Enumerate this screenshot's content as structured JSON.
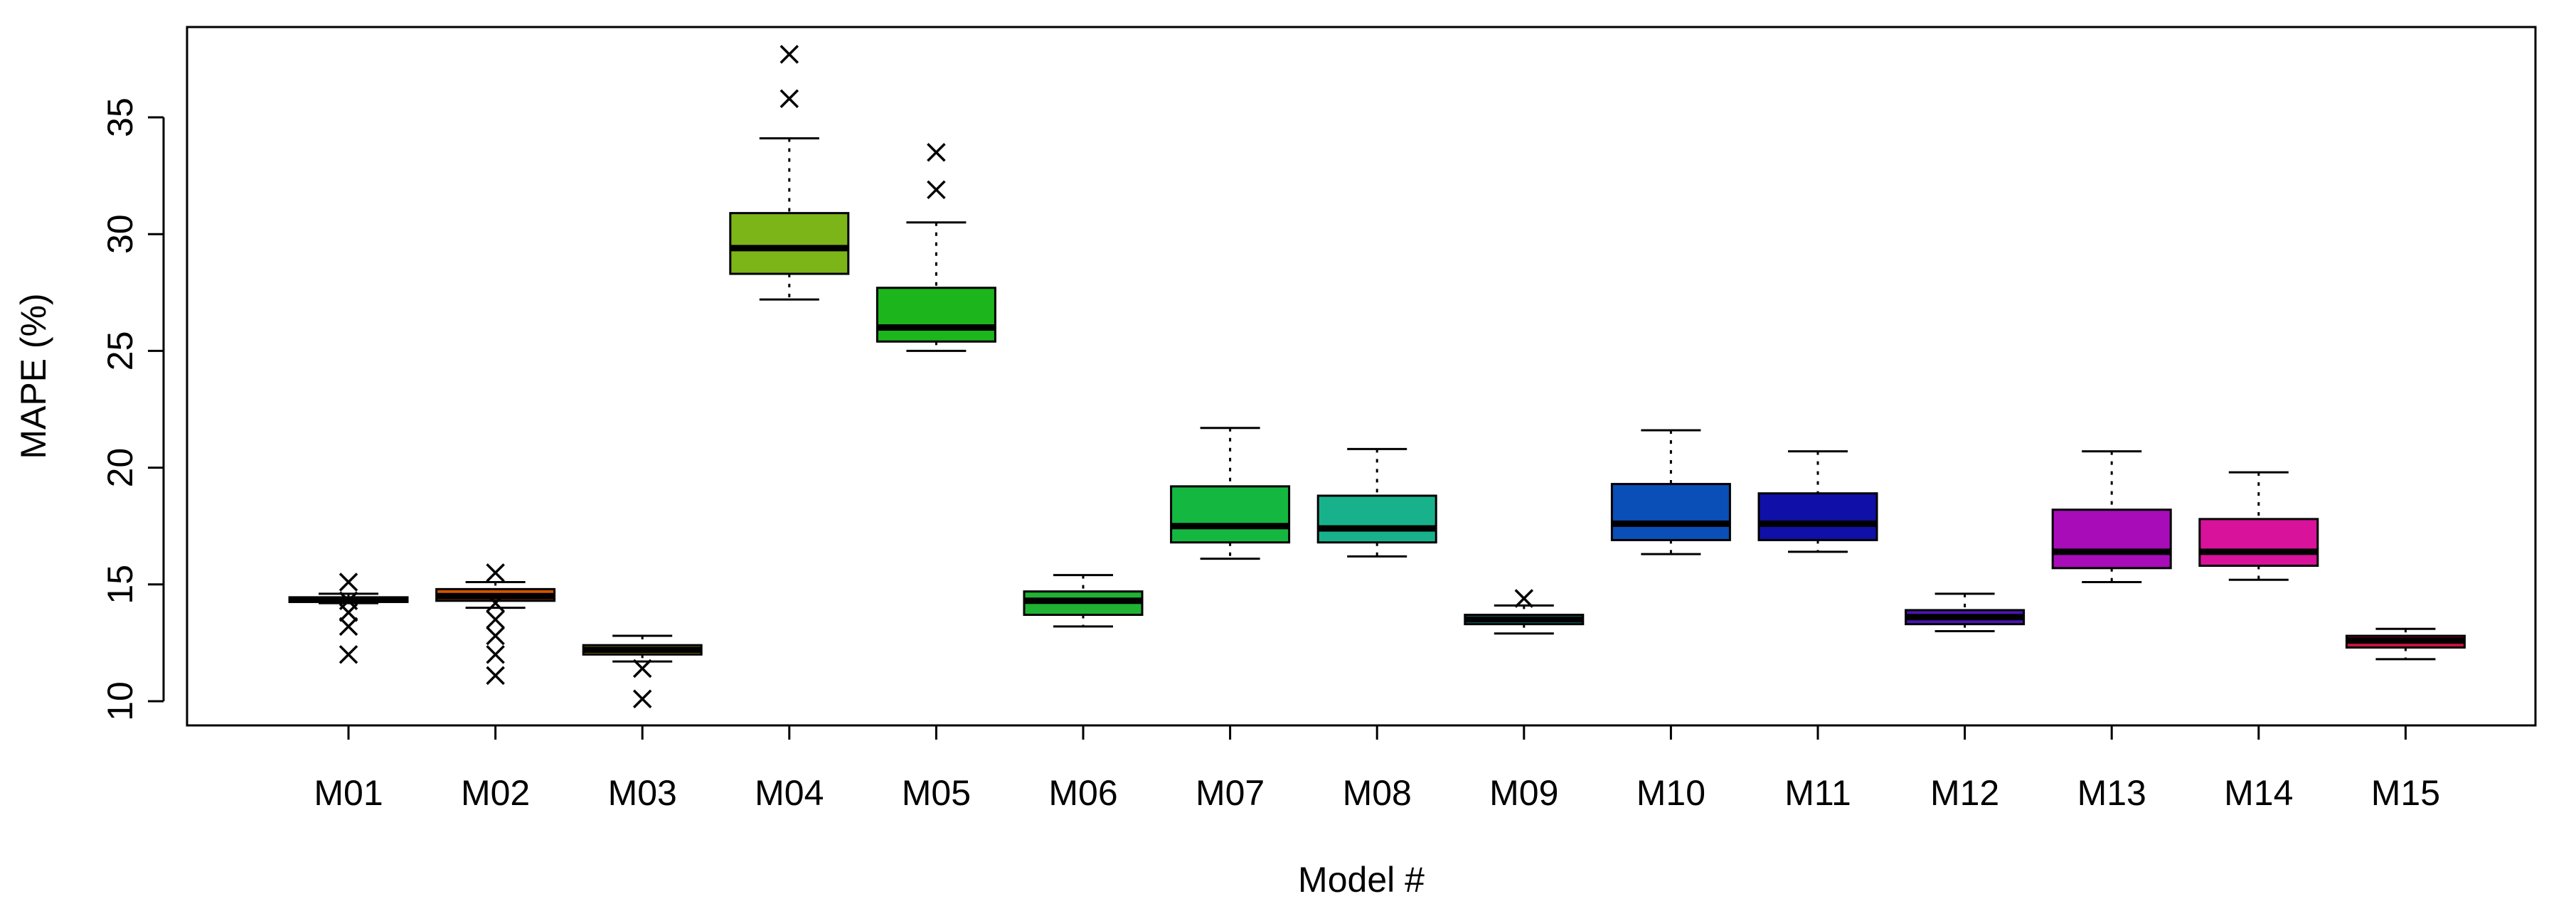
{
  "chart_data": {
    "type": "boxplot",
    "title": "",
    "xlabel": "Model #",
    "ylabel": "MAPE (%)",
    "ylim": [
      9,
      38
    ],
    "yticks": [
      10,
      15,
      20,
      25,
      30,
      35
    ],
    "grid": false,
    "legend": "none",
    "categories": [
      "M01",
      "M02",
      "M03",
      "M04",
      "M05",
      "M06",
      "M07",
      "M08",
      "M09",
      "M10",
      "M11",
      "M12",
      "M13",
      "M14",
      "M15"
    ],
    "boxes": [
      {
        "name": "M01",
        "color": "#C0392B",
        "whisker_low": 14.2,
        "q1": 14.25,
        "median": 14.35,
        "q3": 14.45,
        "whisker_high": 14.6,
        "outliers": [
          15.1,
          14.3,
          13.8,
          13.2,
          12.0
        ]
      },
      {
        "name": "M02",
        "color": "#D35400",
        "whisker_low": 14.0,
        "q1": 14.3,
        "median": 14.5,
        "q3": 14.8,
        "whisker_high": 15.1,
        "outliers": [
          15.5,
          14.2,
          13.5,
          12.8,
          12.0,
          11.1
        ]
      },
      {
        "name": "M03",
        "color": "#B7A21A",
        "whisker_low": 11.7,
        "q1": 12.0,
        "median": 12.2,
        "q3": 12.4,
        "whisker_high": 12.8,
        "outliers": [
          11.4,
          10.1
        ]
      },
      {
        "name": "M04",
        "color": "#7CB518",
        "whisker_low": 27.2,
        "q1": 28.3,
        "median": 29.4,
        "q3": 30.9,
        "whisker_high": 34.1,
        "outliers": [
          35.8,
          37.7
        ]
      },
      {
        "name": "M05",
        "color": "#1CB51C",
        "whisker_low": 25.0,
        "q1": 25.4,
        "median": 26.0,
        "q3": 27.7,
        "whisker_high": 30.5,
        "outliers": [
          31.9,
          33.5
        ]
      },
      {
        "name": "M06",
        "color": "#20B233",
        "whisker_low": 13.2,
        "q1": 13.7,
        "median": 14.3,
        "q3": 14.7,
        "whisker_high": 15.4,
        "outliers": []
      },
      {
        "name": "M07",
        "color": "#14B840",
        "whisker_low": 16.1,
        "q1": 16.8,
        "median": 17.5,
        "q3": 19.2,
        "whisker_high": 21.7,
        "outliers": []
      },
      {
        "name": "M08",
        "color": "#17B28C",
        "whisker_low": 16.2,
        "q1": 16.8,
        "median": 17.4,
        "q3": 18.8,
        "whisker_high": 20.8,
        "outliers": []
      },
      {
        "name": "M09",
        "color": "#1FA3B8",
        "whisker_low": 12.9,
        "q1": 13.3,
        "median": 13.5,
        "q3": 13.7,
        "whisker_high": 14.1,
        "outliers": [
          14.4
        ]
      },
      {
        "name": "M10",
        "color": "#0A4FB8",
        "whisker_low": 16.3,
        "q1": 16.9,
        "median": 17.6,
        "q3": 19.3,
        "whisker_high": 21.6,
        "outliers": []
      },
      {
        "name": "M11",
        "color": "#1010A8",
        "whisker_low": 16.4,
        "q1": 16.9,
        "median": 17.6,
        "q3": 18.9,
        "whisker_high": 20.7,
        "outliers": []
      },
      {
        "name": "M12",
        "color": "#4A14B5",
        "whisker_low": 13.0,
        "q1": 13.3,
        "median": 13.6,
        "q3": 13.9,
        "whisker_high": 14.6,
        "outliers": []
      },
      {
        "name": "M13",
        "color": "#A80CB8",
        "whisker_low": 15.1,
        "q1": 15.7,
        "median": 16.4,
        "q3": 18.2,
        "whisker_high": 20.7,
        "outliers": []
      },
      {
        "name": "M14",
        "color": "#D8129A",
        "whisker_low": 15.2,
        "q1": 15.8,
        "median": 16.4,
        "q3": 17.8,
        "whisker_high": 19.8,
        "outliers": []
      },
      {
        "name": "M15",
        "color": "#C8163F",
        "whisker_low": 11.8,
        "q1": 12.3,
        "median": 12.6,
        "q3": 12.8,
        "whisker_high": 13.1,
        "outliers": []
      }
    ]
  }
}
